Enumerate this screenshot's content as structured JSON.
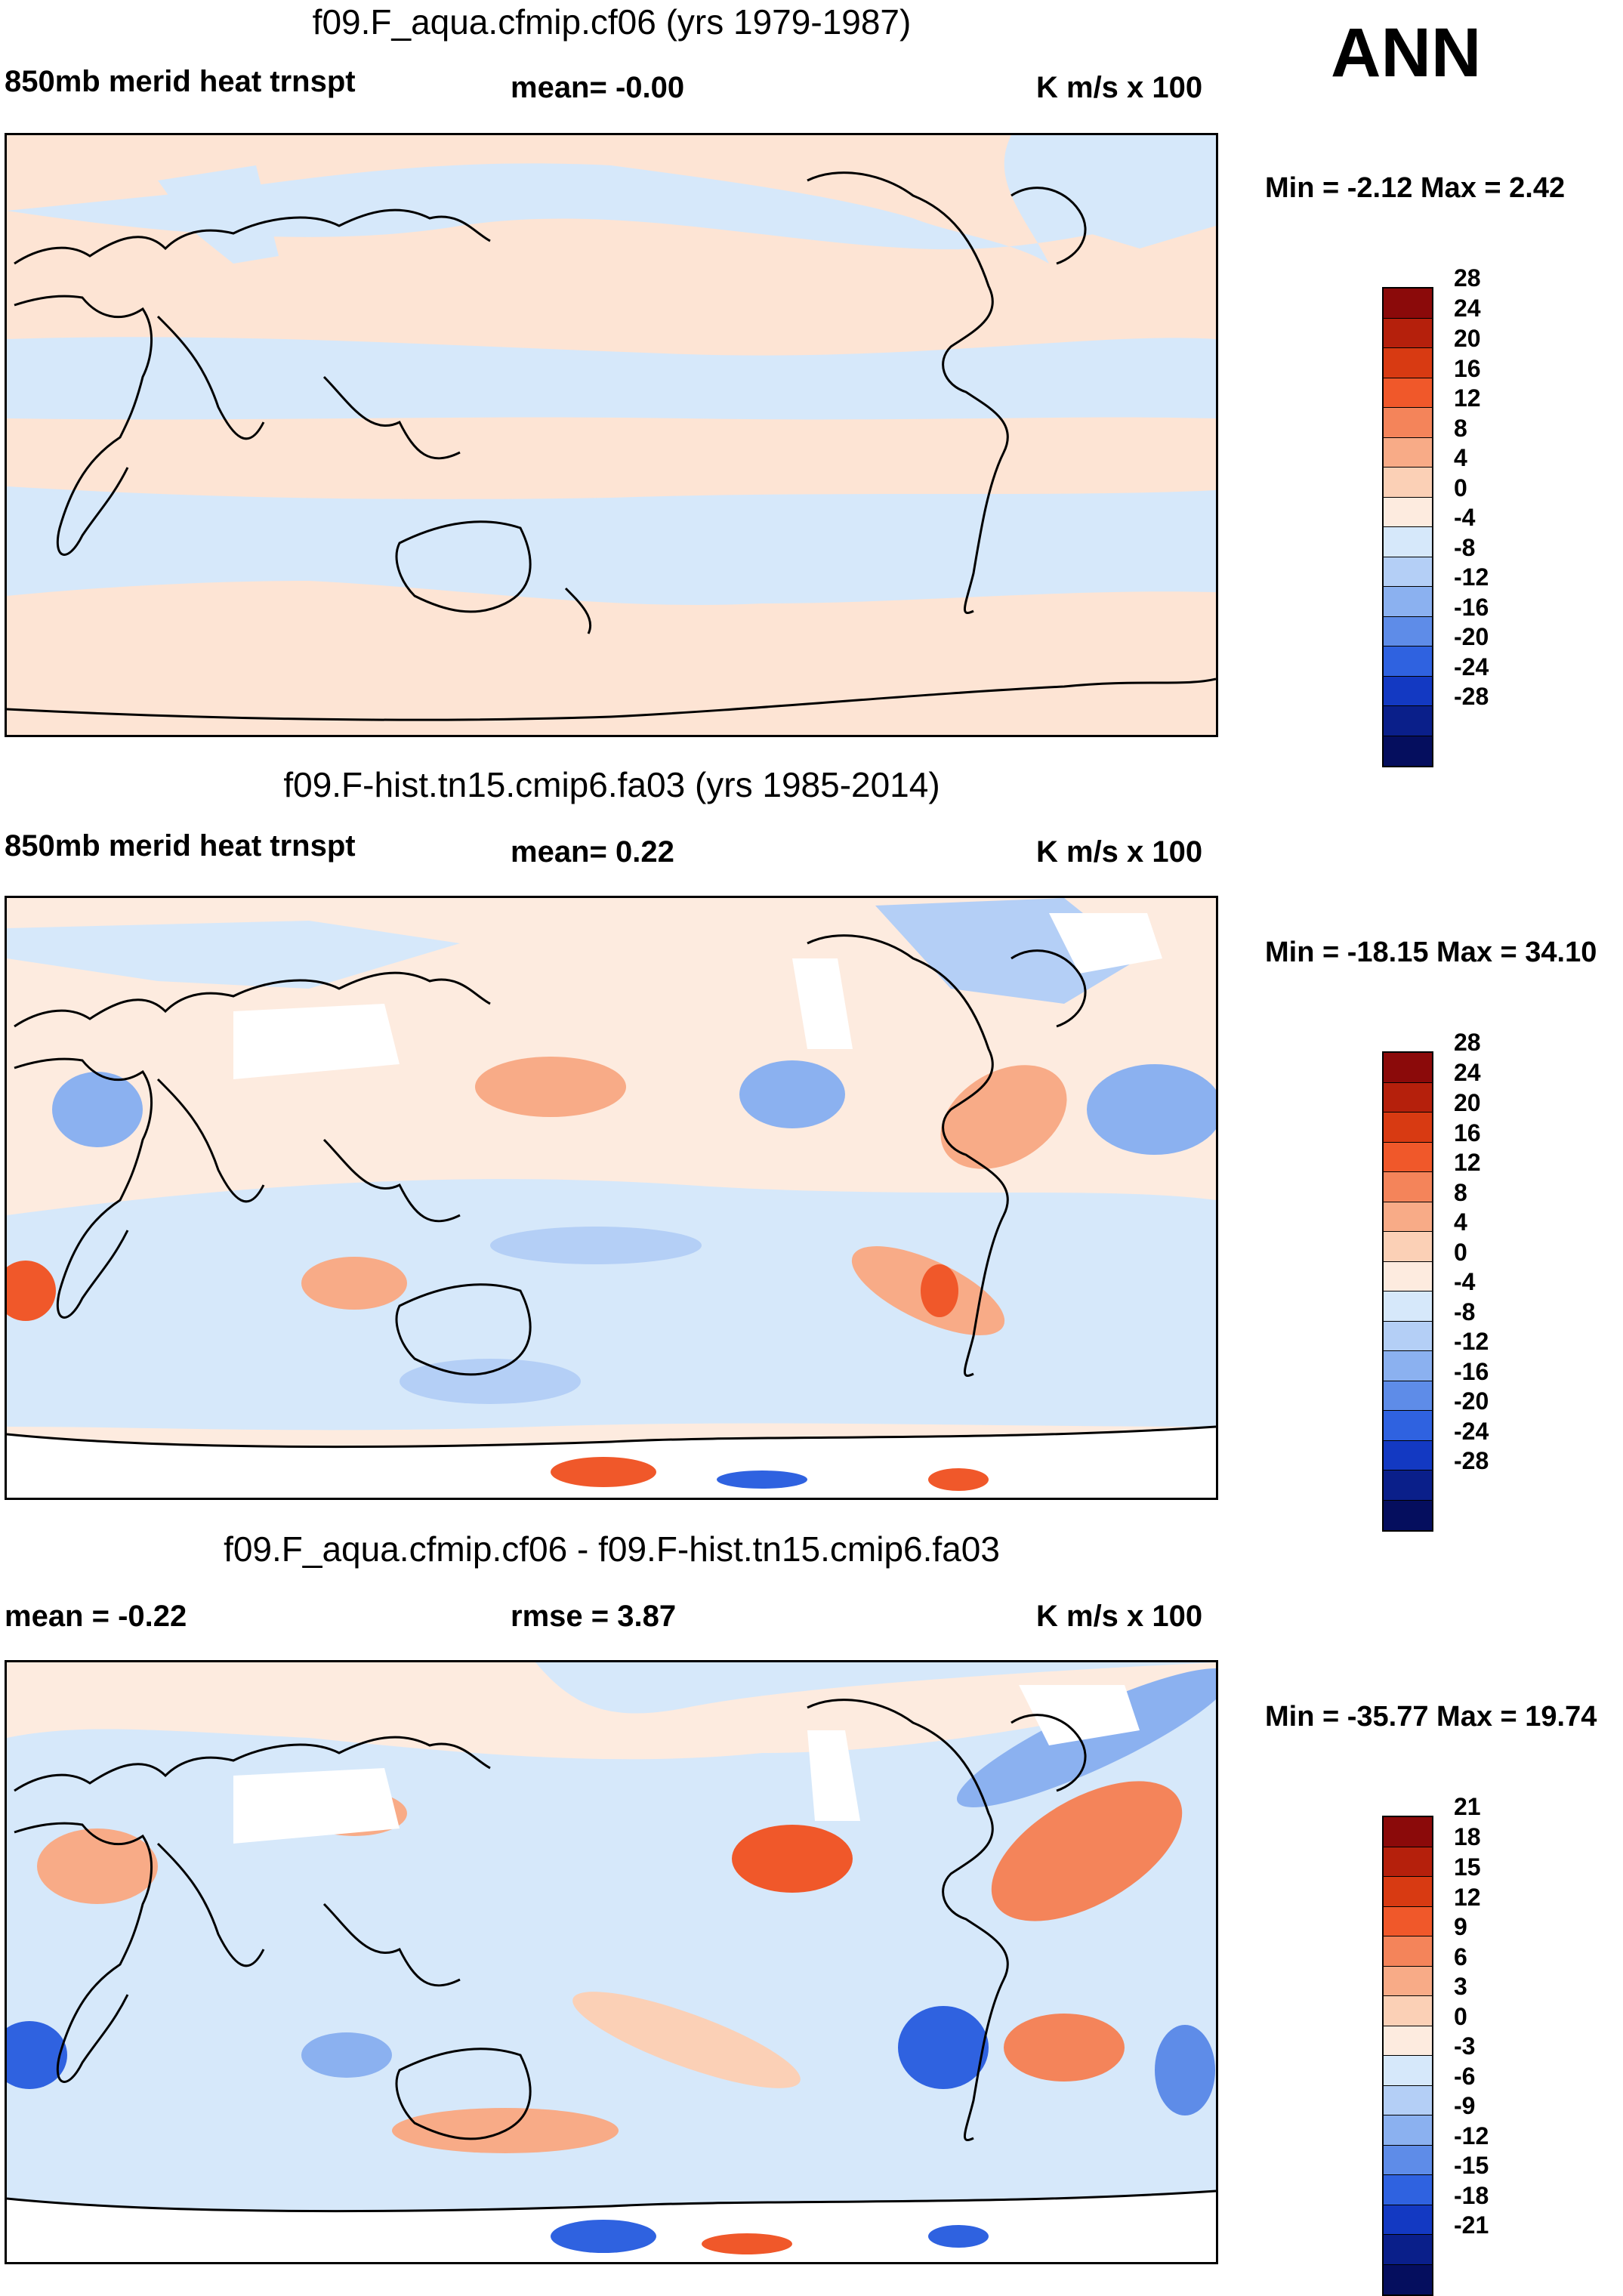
{
  "season": "ANN",
  "panels": [
    {
      "title": "f09.F_aqua.cfmip.cf06 (yrs 1979-1987)",
      "left_label": "850mb merid heat trnspt",
      "center_label": "mean=  -0.00",
      "units": "K m/s x 100",
      "minmax": "Min =  -2.12 Max =   2.42",
      "levels": [
        "28",
        "24",
        "20",
        "16",
        "12",
        "8",
        "4",
        "0",
        "-4",
        "-8",
        "-12",
        "-16",
        "-20",
        "-24",
        "-28"
      ]
    },
    {
      "title": "f09.F-hist.tn15.cmip6.fa03 (yrs 1985-2014)",
      "left_label": "850mb merid heat trnspt",
      "center_label": "mean=   0.22",
      "units": "K m/s x 100",
      "minmax": "Min = -18.15 Max =  34.10",
      "levels": [
        "28",
        "24",
        "20",
        "16",
        "12",
        "8",
        "4",
        "0",
        "-4",
        "-8",
        "-12",
        "-16",
        "-20",
        "-24",
        "-28"
      ]
    },
    {
      "title": "f09.F_aqua.cfmip.cf06 - f09.F-hist.tn15.cmip6.fa03",
      "left_label": "mean =  -0.22",
      "center_label": "rmse =    3.87",
      "units": "K m/s x 100",
      "minmax": "Min = -35.77 Max =  19.74",
      "levels": [
        "21",
        "18",
        "15",
        "12",
        "9",
        "6",
        "3",
        "0",
        "-3",
        "-6",
        "-9",
        "-12",
        "-15",
        "-18",
        "-21"
      ]
    }
  ],
  "colorbar_colors": [
    "#8b0a0a",
    "#b5200c",
    "#d83a12",
    "#f0582a",
    "#f4845a",
    "#f8ab87",
    "#fbd0b6",
    "#fdebdf",
    "#d6e8fa",
    "#b4cff6",
    "#8bb1f0",
    "#5e8ce8",
    "#2f62e0",
    "#1339c2",
    "#0a1f8a",
    "#050e5e"
  ],
  "icons": [
    "world-map-coastlines"
  ]
}
